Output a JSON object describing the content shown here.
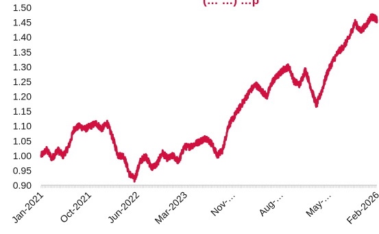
{
  "chart_data": {
    "type": "line",
    "title": "(… …) …p",
    "xlabel": "",
    "ylabel": "",
    "ylim": [
      0.9,
      1.5
    ],
    "y_ticks": [
      "0.90",
      "0.95",
      "1.00",
      "1.05",
      "1.10",
      "1.15",
      "1.20",
      "1.25",
      "1.30",
      "1.35",
      "1.40",
      "1.45",
      "1.50"
    ],
    "x_ticks": [
      "Jan-2021",
      "Oct-2021",
      "Jun-2022",
      "Mar-2023",
      "Nov-…",
      "Aug-…",
      "May-…",
      "Feb-2026"
    ],
    "grid": false,
    "legend": "none",
    "series": [
      {
        "color": "#d0103f",
        "x": [
          "Jan-2021",
          "Feb-2021",
          "Mar-2021",
          "Apr-2021",
          "May-2021",
          "Jun-2021",
          "Jul-2021",
          "Aug-2021",
          "Sep-2021",
          "Oct-2021",
          "Nov-2021",
          "Dec-2021",
          "Jan-2022",
          "Feb-2022",
          "Mar-2022",
          "Apr-2022",
          "May-2022",
          "Jun-2022",
          "Jul-2022",
          "Aug-2022",
          "Sep-2022",
          "Oct-2022",
          "Nov-2022",
          "Dec-2022",
          "Jan-2023",
          "Feb-2023",
          "Mar-2023",
          "Apr-2023",
          "May-2023",
          "Jun-2023",
          "Jul-2023",
          "Aug-2023",
          "Sep-2023",
          "Oct-2023",
          "Nov-2023",
          "Dec-2023",
          "Jan-2024",
          "Feb-2024",
          "Mar-2024",
          "Apr-2024",
          "May-2024",
          "Jun-2024",
          "Jul-2024",
          "Aug-2024",
          "Sep-2024",
          "Oct-2024",
          "Nov-2024",
          "Dec-2024",
          "Jan-2025",
          "Feb-2025",
          "Mar-2025",
          "Apr-2025",
          "May-2025",
          "Jun-2025",
          "Jul-2025",
          "Aug-2025",
          "Sep-2025",
          "Oct-2025",
          "Nov-2025",
          "Dec-2025",
          "Jan-2026",
          "Feb-2026"
        ],
        "values": [
          1.0,
          1.02,
          0.99,
          1.02,
          1.0,
          1.03,
          1.09,
          1.1,
          1.09,
          1.1,
          1.11,
          1.09,
          1.11,
          1.06,
          1.0,
          1.0,
          0.94,
          0.92,
          0.98,
          1.0,
          0.96,
          0.97,
          1.01,
          0.99,
          1.0,
          0.98,
          1.03,
          1.03,
          1.04,
          1.05,
          1.06,
          1.04,
          1.0,
          1.02,
          1.1,
          1.13,
          1.16,
          1.19,
          1.22,
          1.24,
          1.22,
          1.2,
          1.25,
          1.27,
          1.29,
          1.3,
          1.25,
          1.24,
          1.29,
          1.23,
          1.17,
          1.22,
          1.28,
          1.32,
          1.35,
          1.37,
          1.4,
          1.45,
          1.42,
          1.44,
          1.47,
          1.46
        ]
      }
    ]
  }
}
